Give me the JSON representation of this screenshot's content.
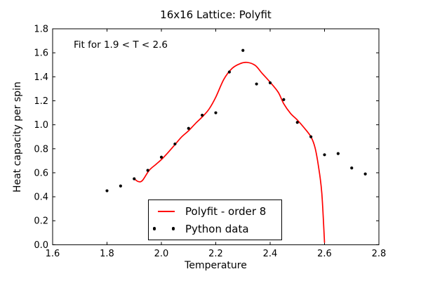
{
  "chart_data": {
    "type": "scatter",
    "title": "16x16 Lattice: Polyfit",
    "annotation": "Fit for 1.9 < T < 2.6",
    "xlabel": "Temperature",
    "ylabel": "Heat capacity per spin",
    "xlim": [
      1.6,
      2.8
    ],
    "ylim": [
      0.0,
      1.8
    ],
    "xticks": [
      "1.6",
      "1.8",
      "2.0",
      "2.2",
      "2.4",
      "2.6",
      "2.8"
    ],
    "yticks": [
      "0.0",
      "0.2",
      "0.4",
      "0.6",
      "0.8",
      "1.0",
      "1.2",
      "1.4",
      "1.6",
      "1.8"
    ],
    "grid": false,
    "legend_position": "lower center",
    "legend": [
      {
        "label": "Polyfit - order 8",
        "type": "line",
        "color": "#ff0000"
      },
      {
        "label": "Python data",
        "type": "scatter",
        "color": "#000000"
      }
    ],
    "series": [
      {
        "name": "Python data",
        "type": "scatter",
        "color": "#000000",
        "marker_radius": 2.1,
        "x": [
          1.8,
          1.85,
          1.9,
          1.95,
          2.0,
          2.05,
          2.1,
          2.15,
          2.2,
          2.25,
          2.3,
          2.35,
          2.4,
          2.45,
          2.5,
          2.55,
          2.6,
          2.65,
          2.7,
          2.75
        ],
        "y": [
          0.45,
          0.49,
          0.55,
          0.62,
          0.73,
          0.84,
          0.97,
          1.08,
          1.1,
          1.44,
          1.62,
          1.34,
          1.35,
          1.21,
          1.02,
          0.9,
          0.75,
          0.76,
          0.64,
          0.59
        ]
      },
      {
        "name": "Polyfit - order 8",
        "type": "line",
        "color": "#ff0000",
        "line_width": 1.7,
        "x": [
          1.9,
          1.915,
          1.93,
          1.955,
          1.98,
          2.0,
          2.025,
          2.05,
          2.075,
          2.1,
          2.125,
          2.15,
          2.175,
          2.2,
          2.23,
          2.26,
          2.29,
          2.315,
          2.345,
          2.37,
          2.4,
          2.43,
          2.45,
          2.475,
          2.5,
          2.525,
          2.55,
          2.565,
          2.578,
          2.59,
          2.6
        ],
        "y": [
          0.55,
          0.527,
          0.535,
          0.62,
          0.67,
          0.71,
          0.77,
          0.835,
          0.9,
          0.95,
          1.01,
          1.065,
          1.13,
          1.23,
          1.38,
          1.47,
          1.51,
          1.52,
          1.495,
          1.43,
          1.355,
          1.27,
          1.175,
          1.095,
          1.04,
          0.975,
          0.9,
          0.81,
          0.65,
          0.43,
          0.02
        ]
      }
    ],
    "axes_color": "#000000",
    "background_color": "#ffffff"
  }
}
